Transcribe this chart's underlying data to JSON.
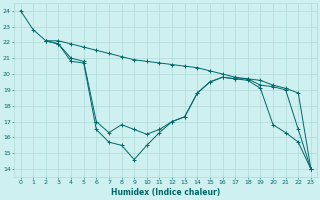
{
  "xlabel": "Humidex (Indice chaleur)",
  "xlim": [
    -0.5,
    23.5
  ],
  "ylim": [
    13.5,
    24.5
  ],
  "yticks": [
    14,
    15,
    16,
    17,
    18,
    19,
    20,
    21,
    22,
    23,
    24
  ],
  "xticks": [
    0,
    1,
    2,
    3,
    4,
    5,
    6,
    7,
    8,
    9,
    10,
    11,
    12,
    13,
    14,
    15,
    16,
    17,
    18,
    19,
    20,
    21,
    22,
    23
  ],
  "bg_color": "#cff0f0",
  "grid_color": "#b0d8d8",
  "line_color": "#006868",
  "lines": [
    {
      "x": [
        0,
        1,
        2,
        3,
        4,
        5,
        6,
        7,
        8,
        9,
        10,
        11,
        12,
        13,
        14,
        15,
        16,
        17,
        18,
        19,
        20,
        21,
        22,
        23
      ],
      "y": [
        24.0,
        22.8,
        22.1,
        22.1,
        21.9,
        21.7,
        21.5,
        21.3,
        21.1,
        20.9,
        20.8,
        20.7,
        20.6,
        20.5,
        20.4,
        20.2,
        20.0,
        19.8,
        19.7,
        19.6,
        19.3,
        19.1,
        18.8,
        14.0
      ]
    },
    {
      "x": [
        2,
        3,
        4,
        5,
        6,
        7,
        8,
        9,
        10,
        11,
        12,
        13,
        14,
        15,
        16,
        17,
        18,
        19,
        20,
        21,
        22,
        23
      ],
      "y": [
        22.1,
        21.9,
        21.0,
        20.8,
        17.0,
        16.3,
        16.8,
        16.5,
        16.2,
        16.5,
        17.0,
        17.3,
        18.8,
        19.5,
        19.8,
        19.7,
        19.7,
        19.3,
        19.2,
        19.0,
        16.5,
        14.0
      ]
    },
    {
      "x": [
        2,
        3,
        4,
        5,
        6,
        7,
        8,
        9,
        10,
        11,
        12,
        13,
        14,
        15,
        16,
        17,
        18,
        19,
        20,
        21,
        22,
        23
      ],
      "y": [
        22.1,
        21.9,
        20.8,
        20.7,
        16.5,
        15.7,
        15.5,
        14.6,
        15.5,
        16.3,
        17.0,
        17.3,
        18.8,
        19.5,
        19.8,
        19.7,
        19.6,
        19.1,
        16.8,
        16.3,
        15.7,
        14.0
      ]
    }
  ]
}
